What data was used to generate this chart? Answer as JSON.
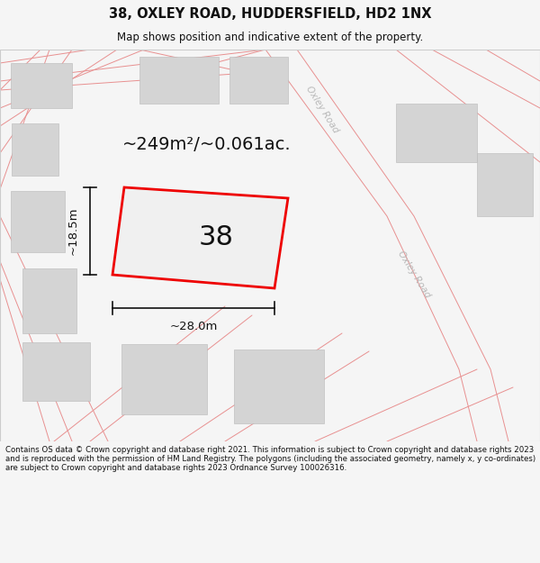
{
  "title": "38, OXLEY ROAD, HUDDERSFIELD, HD2 1NX",
  "subtitle": "Map shows position and indicative extent of the property.",
  "footer": "Contains OS data © Crown copyright and database right 2021. This information is subject to Crown copyright and database rights 2023 and is reproduced with the permission of HM Land Registry. The polygons (including the associated geometry, namely x, y co-ordinates) are subject to Crown copyright and database rights 2023 Ordnance Survey 100026316.",
  "area_text": "~249m²/~0.061ac.",
  "width_label": "~28.0m",
  "height_label": "~18.5m",
  "plot_number": "38",
  "bg_color": "#f5f5f5",
  "map_bg": "#f8f8f8",
  "building_fill": "#d4d4d4",
  "road_line_color": "#e89090",
  "plot_line_color": "#ee0000",
  "dim_line_color": "#111111",
  "text_color": "#111111",
  "road_label_color": "#b8b8b8",
  "title_fontsize": 10.5,
  "subtitle_fontsize": 8.5,
  "footer_fontsize": 6.2,
  "area_fontsize": 14,
  "plot_num_fontsize": 22,
  "dim_fontsize": 9.5
}
